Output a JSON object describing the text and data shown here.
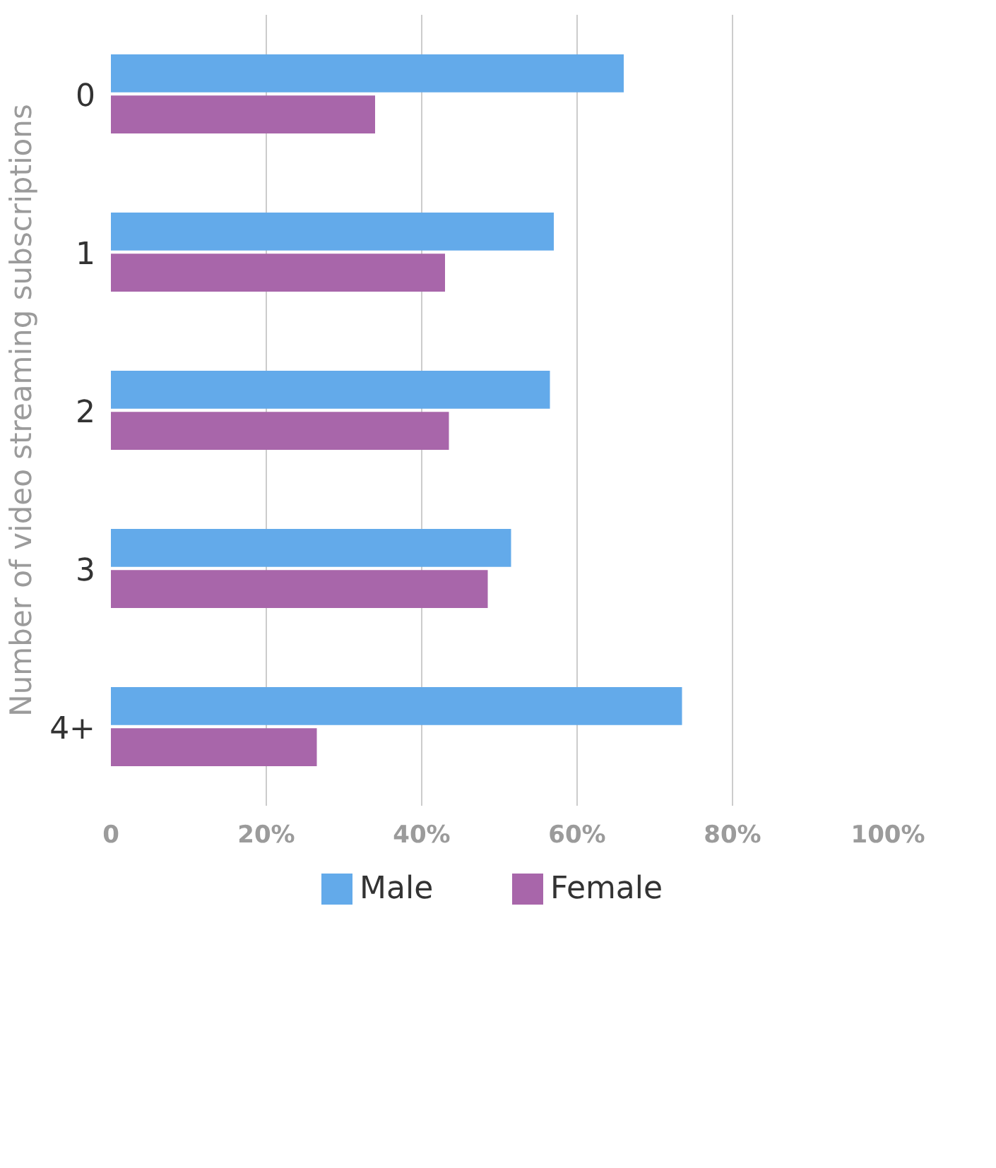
{
  "chart_data": {
    "type": "bar",
    "orientation": "horizontal",
    "ylabel": "Number of video streaming subscriptions",
    "categories": [
      "0",
      "1",
      "2",
      "3",
      "4+"
    ],
    "series": [
      {
        "name": "Male",
        "color": "#63aaea",
        "values": [
          66,
          57,
          56.5,
          51.5,
          73.5
        ]
      },
      {
        "name": "Female",
        "color": "#a866aa",
        "values": [
          34,
          43,
          43.5,
          48.5,
          26.5
        ]
      }
    ],
    "xlim": [
      0,
      100
    ],
    "xticks": [
      0,
      {
        "value": 20,
        "label": "20%"
      },
      {
        "value": 40,
        "label": "40%"
      },
      {
        "value": 60,
        "label": "60%"
      },
      {
        "value": 80,
        "label": "80%"
      },
      {
        "value": 100,
        "label": "100%"
      }
    ],
    "grid": "x",
    "legend": "bottom"
  }
}
